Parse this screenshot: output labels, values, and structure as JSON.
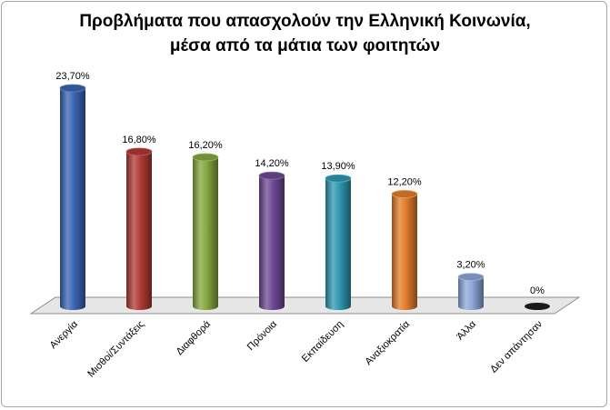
{
  "chart_data": {
    "type": "bar",
    "title_line1": "Προβλήματα που απασχολούν την Ελληνική Κοινωνία,",
    "title_line2": "μέσα από τα μάτια των φοιτητών",
    "categories": [
      "Ανεργία",
      "Μισθοί/Συντάξεις",
      "Διαφθορά",
      "Πρόνοια",
      "Εκπαίδευση",
      "Αναξιοκρατία",
      "Άλλα",
      "Δεν απάντησαν"
    ],
    "values": [
      23.7,
      16.8,
      16.2,
      14.2,
      13.9,
      12.2,
      3.2,
      0
    ],
    "value_labels": [
      "23,70%",
      "16,80%",
      "16,20%",
      "14,20%",
      "13,90%",
      "12,20%",
      "3,20%",
      "0%"
    ],
    "colors": [
      "#3a66b5",
      "#b03a37",
      "#86a73f",
      "#6d4a94",
      "#2f98b1",
      "#e37d2a",
      "#8ea8d9",
      "#1a1a1a"
    ],
    "ylim": [
      0,
      23.7
    ],
    "grid": false,
    "legend": "none"
  }
}
